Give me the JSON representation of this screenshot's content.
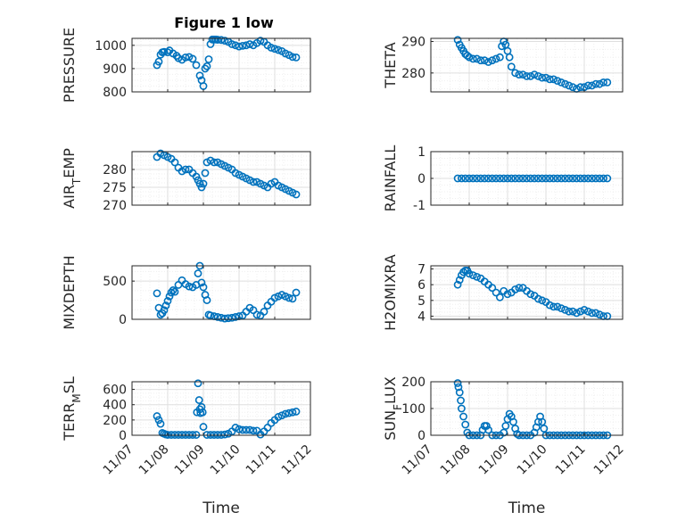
{
  "figure_title": "Figure 1 low",
  "colors": {
    "marker": "#0072bd",
    "axis": "#262626",
    "grid_major": "#dfdfdf",
    "grid_minor": "#efefef",
    "background": "#ffffff"
  },
  "chart_data": [
    {
      "id": "pressure",
      "type": "scatter",
      "title": "Figure 1 low",
      "ylabel": "PRESSURE",
      "xlim": [
        0,
        5
      ],
      "ylim": [
        800,
        1030
      ],
      "yticks": [
        800,
        900,
        1000
      ],
      "yticklabels": [
        "800",
        "900",
        "1000"
      ],
      "xticklabels": [],
      "xlabel": "",
      "x": [
        0.7,
        0.75,
        0.8,
        0.85,
        0.9,
        1,
        1.05,
        1.15,
        1.25,
        1.3,
        1.4,
        1.5,
        1.6,
        1.7,
        1.8,
        1.9,
        1.95,
        2.0,
        2.05,
        2.1,
        2.15,
        2.2,
        2.25,
        2.3,
        2.35,
        2.4,
        2.5,
        2.6,
        2.7,
        2.8,
        2.9,
        3.0,
        3.1,
        3.2,
        3.3,
        3.4,
        3.5,
        3.6,
        3.7,
        3.8,
        3.9,
        4.0,
        4.1,
        4.2,
        4.3,
        4.4,
        4.5,
        4.6
      ],
      "y": [
        915,
        930,
        960,
        970,
        972,
        970,
        978,
        965,
        955,
        945,
        938,
        948,
        950,
        942,
        915,
        870,
        850,
        825,
        900,
        910,
        940,
        1005,
        1025,
        1025,
        1025,
        1024,
        1023,
        1020,
        1015,
        1005,
        1000,
        995,
        998,
        1000,
        1005,
        1000,
        1010,
        1020,
        1015,
        1000,
        990,
        985,
        980,
        975,
        965,
        958,
        950,
        948
      ]
    },
    {
      "id": "theta",
      "type": "scatter",
      "ylabel": "THETA",
      "xlim": [
        0,
        5
      ],
      "ylim": [
        274,
        291
      ],
      "yticks": [
        280,
        290
      ],
      "yticklabels": [
        "280",
        "290"
      ],
      "xticklabels": [],
      "xlabel": "",
      "x": [
        0.7,
        0.75,
        0.8,
        0.85,
        0.9,
        0.95,
        1.0,
        1.1,
        1.2,
        1.3,
        1.4,
        1.5,
        1.6,
        1.7,
        1.8,
        1.85,
        1.9,
        1.95,
        2.0,
        2.05,
        2.1,
        2.2,
        2.3,
        2.4,
        2.5,
        2.6,
        2.7,
        2.8,
        2.9,
        3.0,
        3.1,
        3.2,
        3.3,
        3.4,
        3.5,
        3.6,
        3.7,
        3.8,
        3.9,
        4.0,
        4.1,
        4.2,
        4.3,
        4.4,
        4.5,
        4.6
      ],
      "y": [
        290.5,
        289,
        288,
        287,
        286,
        285.5,
        285,
        284.5,
        284.5,
        284,
        284,
        283.5,
        284,
        284.5,
        285,
        288.5,
        290,
        289,
        287,
        285,
        282,
        280,
        279.5,
        279.5,
        279,
        279,
        279.5,
        279,
        278.5,
        278.5,
        278,
        278,
        277.5,
        277,
        276.5,
        276,
        275.5,
        275,
        275.5,
        275.5,
        276,
        276,
        276.5,
        276.5,
        277,
        277
      ]
    },
    {
      "id": "air_temp",
      "type": "scatter",
      "ylabel": "AIR_TEMP",
      "xlim": [
        0,
        5
      ],
      "ylim": [
        270,
        285
      ],
      "yticks": [
        270,
        275,
        280
      ],
      "yticklabels": [
        "270",
        "275",
        "280"
      ],
      "xticklabels": [],
      "xlabel": "",
      "x": [
        0.7,
        0.8,
        0.9,
        1.0,
        1.1,
        1.2,
        1.3,
        1.4,
        1.5,
        1.6,
        1.7,
        1.8,
        1.85,
        1.9,
        1.95,
        2.0,
        2.05,
        2.1,
        2.2,
        2.3,
        2.4,
        2.5,
        2.6,
        2.7,
        2.8,
        2.9,
        3.0,
        3.1,
        3.2,
        3.3,
        3.4,
        3.5,
        3.6,
        3.7,
        3.8,
        3.9,
        4.0,
        4.1,
        4.2,
        4.3,
        4.4,
        4.5,
        4.6
      ],
      "y": [
        283.5,
        284.5,
        284,
        283.5,
        283,
        282,
        280.5,
        279.5,
        280,
        280,
        279,
        278,
        277,
        276,
        275,
        276,
        279,
        282,
        282.5,
        282,
        282,
        281.5,
        281,
        280.5,
        280,
        279,
        278.5,
        278,
        277.5,
        277,
        276.5,
        276.5,
        276,
        275.5,
        275,
        276,
        276.5,
        275.5,
        275,
        274.5,
        274,
        273.5,
        273
      ]
    },
    {
      "id": "rainfall",
      "type": "scatter",
      "ylabel": "RAINFALL",
      "xlim": [
        0,
        5
      ],
      "ylim": [
        -1,
        1
      ],
      "yticks": [
        -1,
        0,
        1
      ],
      "yticklabels": [
        "-1",
        "0",
        "1"
      ],
      "xticklabels": [],
      "xlabel": "",
      "x": [
        0.7,
        0.8,
        0.9,
        1.0,
        1.1,
        1.2,
        1.3,
        1.4,
        1.5,
        1.6,
        1.7,
        1.8,
        1.9,
        2.0,
        2.1,
        2.2,
        2.3,
        2.4,
        2.5,
        2.6,
        2.7,
        2.8,
        2.9,
        3.0,
        3.1,
        3.2,
        3.3,
        3.4,
        3.5,
        3.6,
        3.7,
        3.8,
        3.9,
        4.0,
        4.1,
        4.2,
        4.3,
        4.4,
        4.5,
        4.6
      ],
      "y": [
        0,
        0,
        0,
        0,
        0,
        0,
        0,
        0,
        0,
        0,
        0,
        0,
        0,
        0,
        0,
        0,
        0,
        0,
        0,
        0,
        0,
        0,
        0,
        0,
        0,
        0,
        0,
        0,
        0,
        0,
        0,
        0,
        0,
        0,
        0,
        0,
        0,
        0,
        0,
        0
      ]
    },
    {
      "id": "mixdepth",
      "type": "scatter",
      "ylabel": "MIXDEPTH",
      "xlim": [
        0,
        5
      ],
      "ylim": [
        0,
        700
      ],
      "yticks": [
        0,
        500
      ],
      "yticklabels": [
        "0",
        "500"
      ],
      "xticklabels": [],
      "xlabel": "",
      "x": [
        0.7,
        0.75,
        0.8,
        0.85,
        0.9,
        0.95,
        1.0,
        1.05,
        1.1,
        1.15,
        1.2,
        1.3,
        1.4,
        1.5,
        1.6,
        1.7,
        1.8,
        1.85,
        1.9,
        1.95,
        2.0,
        2.05,
        2.1,
        2.15,
        2.2,
        2.3,
        2.4,
        2.5,
        2.6,
        2.7,
        2.8,
        2.9,
        3.0,
        3.1,
        3.2,
        3.3,
        3.4,
        3.5,
        3.6,
        3.7,
        3.8,
        3.9,
        4.0,
        4.1,
        4.2,
        4.3,
        4.4,
        4.5,
        4.6
      ],
      "y": [
        340,
        150,
        60,
        80,
        120,
        180,
        240,
        300,
        350,
        380,
        360,
        450,
        510,
        460,
        430,
        420,
        450,
        600,
        700,
        480,
        420,
        320,
        250,
        60,
        50,
        40,
        30,
        20,
        10,
        15,
        20,
        30,
        40,
        50,
        100,
        150,
        120,
        60,
        50,
        100,
        180,
        230,
        280,
        300,
        320,
        300,
        280,
        270,
        350
      ]
    },
    {
      "id": "h2omixra",
      "type": "scatter",
      "ylabel": "H2OMIXRA",
      "xlim": [
        0,
        5
      ],
      "ylim": [
        3.8,
        7.2
      ],
      "yticks": [
        4,
        5,
        6,
        7
      ],
      "yticklabels": [
        "4",
        "5",
        "6",
        "7"
      ],
      "xticklabels": [],
      "xlabel": "",
      "x": [
        0.7,
        0.75,
        0.8,
        0.85,
        0.9,
        0.95,
        1.0,
        1.1,
        1.2,
        1.3,
        1.4,
        1.5,
        1.6,
        1.7,
        1.8,
        1.9,
        2.0,
        2.1,
        2.2,
        2.3,
        2.4,
        2.5,
        2.6,
        2.7,
        2.8,
        2.9,
        3.0,
        3.1,
        3.2,
        3.3,
        3.4,
        3.5,
        3.6,
        3.7,
        3.8,
        3.9,
        4.0,
        4.1,
        4.2,
        4.3,
        4.4,
        4.5,
        4.6
      ],
      "y": [
        6.0,
        6.3,
        6.6,
        6.8,
        6.9,
        6.9,
        6.7,
        6.6,
        6.5,
        6.4,
        6.2,
        6.0,
        5.8,
        5.5,
        5.2,
        5.6,
        5.4,
        5.5,
        5.7,
        5.8,
        5.8,
        5.6,
        5.4,
        5.3,
        5.1,
        5.0,
        4.9,
        4.7,
        4.6,
        4.6,
        4.5,
        4.4,
        4.3,
        4.3,
        4.2,
        4.3,
        4.4,
        4.3,
        4.2,
        4.2,
        4.1,
        4.0,
        4.0
      ]
    },
    {
      "id": "terr_msl",
      "type": "scatter",
      "ylabel": "TERR_MSL",
      "xlim": [
        0,
        5
      ],
      "ylim": [
        0,
        700
      ],
      "yticks": [
        0,
        200,
        400,
        600
      ],
      "yticklabels": [
        "0",
        "200",
        "400",
        "600"
      ],
      "xticks": [
        0,
        1,
        2,
        3,
        4,
        5
      ],
      "xticklabels": [
        "11/07",
        "11/08",
        "11/09",
        "11/10",
        "11/11",
        "11/12"
      ],
      "xlabel": "Time",
      "x": [
        0.7,
        0.75,
        0.8,
        0.85,
        0.9,
        0.95,
        1.0,
        1.1,
        1.2,
        1.3,
        1.4,
        1.5,
        1.6,
        1.7,
        1.8,
        1.82,
        1.85,
        1.88,
        1.9,
        1.92,
        1.95,
        1.98,
        2.0,
        2.1,
        2.2,
        2.3,
        2.4,
        2.5,
        2.6,
        2.7,
        2.8,
        2.9,
        3.0,
        3.1,
        3.2,
        3.3,
        3.4,
        3.5,
        3.6,
        3.7,
        3.8,
        3.9,
        4.0,
        4.1,
        4.2,
        4.3,
        4.4,
        4.5,
        4.6
      ],
      "y": [
        250,
        200,
        150,
        30,
        20,
        10,
        5,
        5,
        5,
        5,
        5,
        5,
        5,
        5,
        5,
        300,
        680,
        460,
        340,
        290,
        370,
        300,
        110,
        5,
        5,
        5,
        5,
        5,
        10,
        20,
        50,
        100,
        80,
        70,
        70,
        70,
        60,
        60,
        10,
        50,
        100,
        160,
        200,
        240,
        260,
        280,
        290,
        300,
        310
      ]
    },
    {
      "id": "sun_flux",
      "type": "scatter",
      "ylabel": "SUN_FLUX",
      "xlim": [
        0,
        5
      ],
      "ylim": [
        0,
        200
      ],
      "yticks": [
        0,
        100,
        200
      ],
      "yticklabels": [
        "0",
        "100",
        "200"
      ],
      "xticks": [
        0,
        1,
        2,
        3,
        4,
        5
      ],
      "xticklabels": [
        "11/07",
        "11/08",
        "11/09",
        "11/10",
        "11/11",
        "11/12"
      ],
      "xlabel": "Time",
      "x": [
        0.7,
        0.72,
        0.75,
        0.78,
        0.8,
        0.85,
        0.9,
        0.95,
        1.0,
        1.1,
        1.2,
        1.3,
        1.35,
        1.4,
        1.45,
        1.5,
        1.6,
        1.7,
        1.8,
        1.9,
        1.95,
        2.0,
        2.05,
        2.1,
        2.15,
        2.2,
        2.25,
        2.3,
        2.4,
        2.5,
        2.6,
        2.7,
        2.75,
        2.8,
        2.85,
        2.9,
        2.95,
        3.0,
        3.1,
        3.2,
        3.3,
        3.4,
        3.5,
        3.6,
        3.7,
        3.8,
        3.9,
        4.0,
        4.1,
        4.2,
        4.3,
        4.4,
        4.5,
        4.6
      ],
      "y": [
        195,
        180,
        160,
        130,
        100,
        70,
        40,
        10,
        0,
        0,
        0,
        0,
        20,
        35,
        35,
        20,
        0,
        0,
        0,
        10,
        35,
        60,
        80,
        70,
        50,
        25,
        5,
        0,
        0,
        0,
        0,
        10,
        30,
        50,
        70,
        50,
        25,
        0,
        0,
        0,
        0,
        0,
        0,
        0,
        0,
        0,
        0,
        0,
        0,
        0,
        0,
        0,
        0,
        0
      ]
    }
  ]
}
